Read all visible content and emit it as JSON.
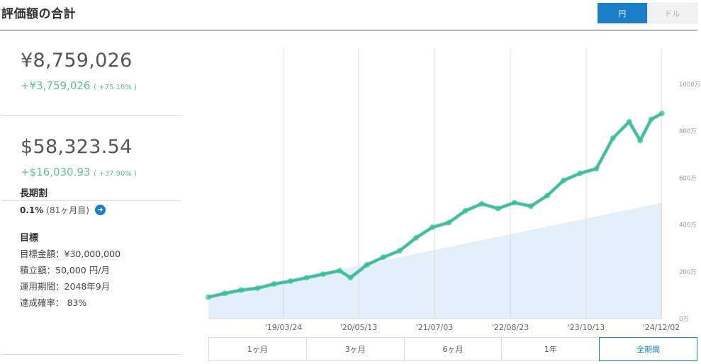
{
  "header": {
    "title": "評価額の合計",
    "currency_yen": "円",
    "currency_usd": "ドル"
  },
  "yen_block": {
    "value": "¥8,759,026",
    "gain": "+¥3,759,026",
    "gain_pct": "( +75.18% )"
  },
  "usd_block": {
    "value": "$58,323.54",
    "gain": "+$16,030.93",
    "gain_pct": "( +37.90% )"
  },
  "long_term_discount": {
    "title": "長期割",
    "rate": "0.1%",
    "months": "(81ヶ月目)"
  },
  "goal": {
    "title": "目標",
    "amount": "目標金額：¥30,000,000",
    "monthly": "積立額：50,000 円/月",
    "period": "運用期間：2048年9月",
    "probability": "達成確率： 83%"
  },
  "chart_data": {
    "type": "area",
    "title": "",
    "xlabel": "",
    "ylabel": "",
    "y_unit": "万",
    "ylim": [
      0,
      1000
    ],
    "y_ticks": [
      "1000万",
      "800万",
      "600万",
      "400万",
      "200万",
      "0万"
    ],
    "x_tick_labels": [
      "'19/03/24",
      "'20/05/13",
      "'21/07/03",
      "'22/08/23",
      "'23/10/13",
      "'24/12/02"
    ],
    "x_start": "2018-01",
    "x_end": "2024-12",
    "series": [
      {
        "name": "",
        "color": "#37c38b",
        "x": [
          "2018-01",
          "2018-04",
          "2018-07",
          "2018-10",
          "2019-01",
          "2019-04",
          "2019-07",
          "2019-10",
          "2020-01",
          "2020-03",
          "2020-06",
          "2020-09",
          "2020-12",
          "2021-03",
          "2021-06",
          "2021-09",
          "2021-12",
          "2022-03",
          "2022-06",
          "2022-09",
          "2022-12",
          "2023-03",
          "2023-06",
          "2023-09",
          "2023-12",
          "2024-03",
          "2024-06",
          "2024-08",
          "2024-10",
          "2024-12"
        ],
        "values": [
          92,
          108,
          122,
          130,
          148,
          160,
          175,
          190,
          205,
          175,
          230,
          262,
          290,
          345,
          390,
          410,
          460,
          490,
          470,
          495,
          480,
          525,
          590,
          620,
          640,
          770,
          840,
          760,
          850,
          876
        ]
      },
      {
        "name": "",
        "color": "#e3eff9",
        "x": [
          "2018-01",
          "2024-12"
        ],
        "values": [
          92,
          495
        ]
      }
    ]
  },
  "periods": [
    "1ヶ月",
    "3ヶ月",
    "6ヶ月",
    "1年",
    "全期間"
  ],
  "active_period": "全期間"
}
